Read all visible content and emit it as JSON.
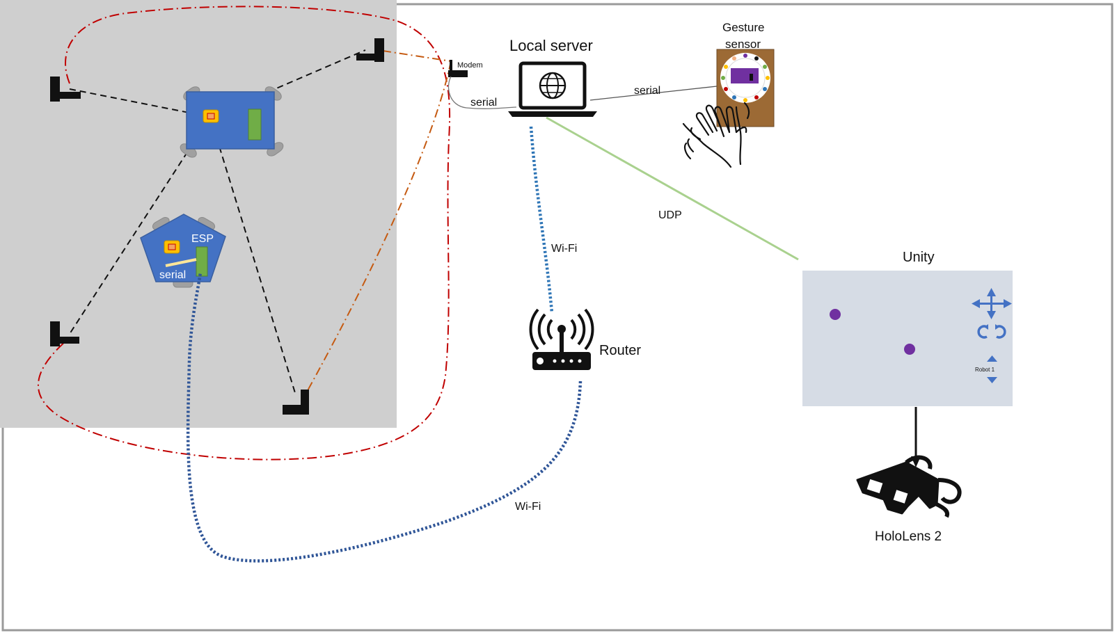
{
  "labels": {
    "local_server": "Local server",
    "gesture_sensor_line1": "Gesture",
    "gesture_sensor_line2": "sensor",
    "modem": "Modem",
    "serial_server": "serial",
    "serial_gesture": "serial",
    "serial_robot": "serial",
    "esp": "ESP",
    "wifi_upper": "Wi-Fi",
    "wifi_lower": "Wi-Fi",
    "router": "Router",
    "udp": "UDP",
    "unity": "Unity",
    "robot_label": "Robot 1",
    "hololens": "HoloLens 2"
  },
  "colors": {
    "arena_bg": "#cfcfcf",
    "robot_blue": "#4472c4",
    "unity_panel": "#d6dce5",
    "gesture_brown": "#9c6a35",
    "red_loop": "#c00000",
    "orange_link": "#c55a11",
    "wifi_light": "#2e75b6",
    "wifi_dark": "#2f5597",
    "udp_green": "#a9d18e",
    "marker_purple": "#7030a0",
    "unity_arrows": "#4472c4"
  },
  "icons": {
    "laptop": "laptop-globe-icon",
    "router": "wifi-router-icon",
    "hand": "waving-hand-icon",
    "glasses": "3d-glasses-icon",
    "anchor": "uwb-anchor-icon"
  }
}
